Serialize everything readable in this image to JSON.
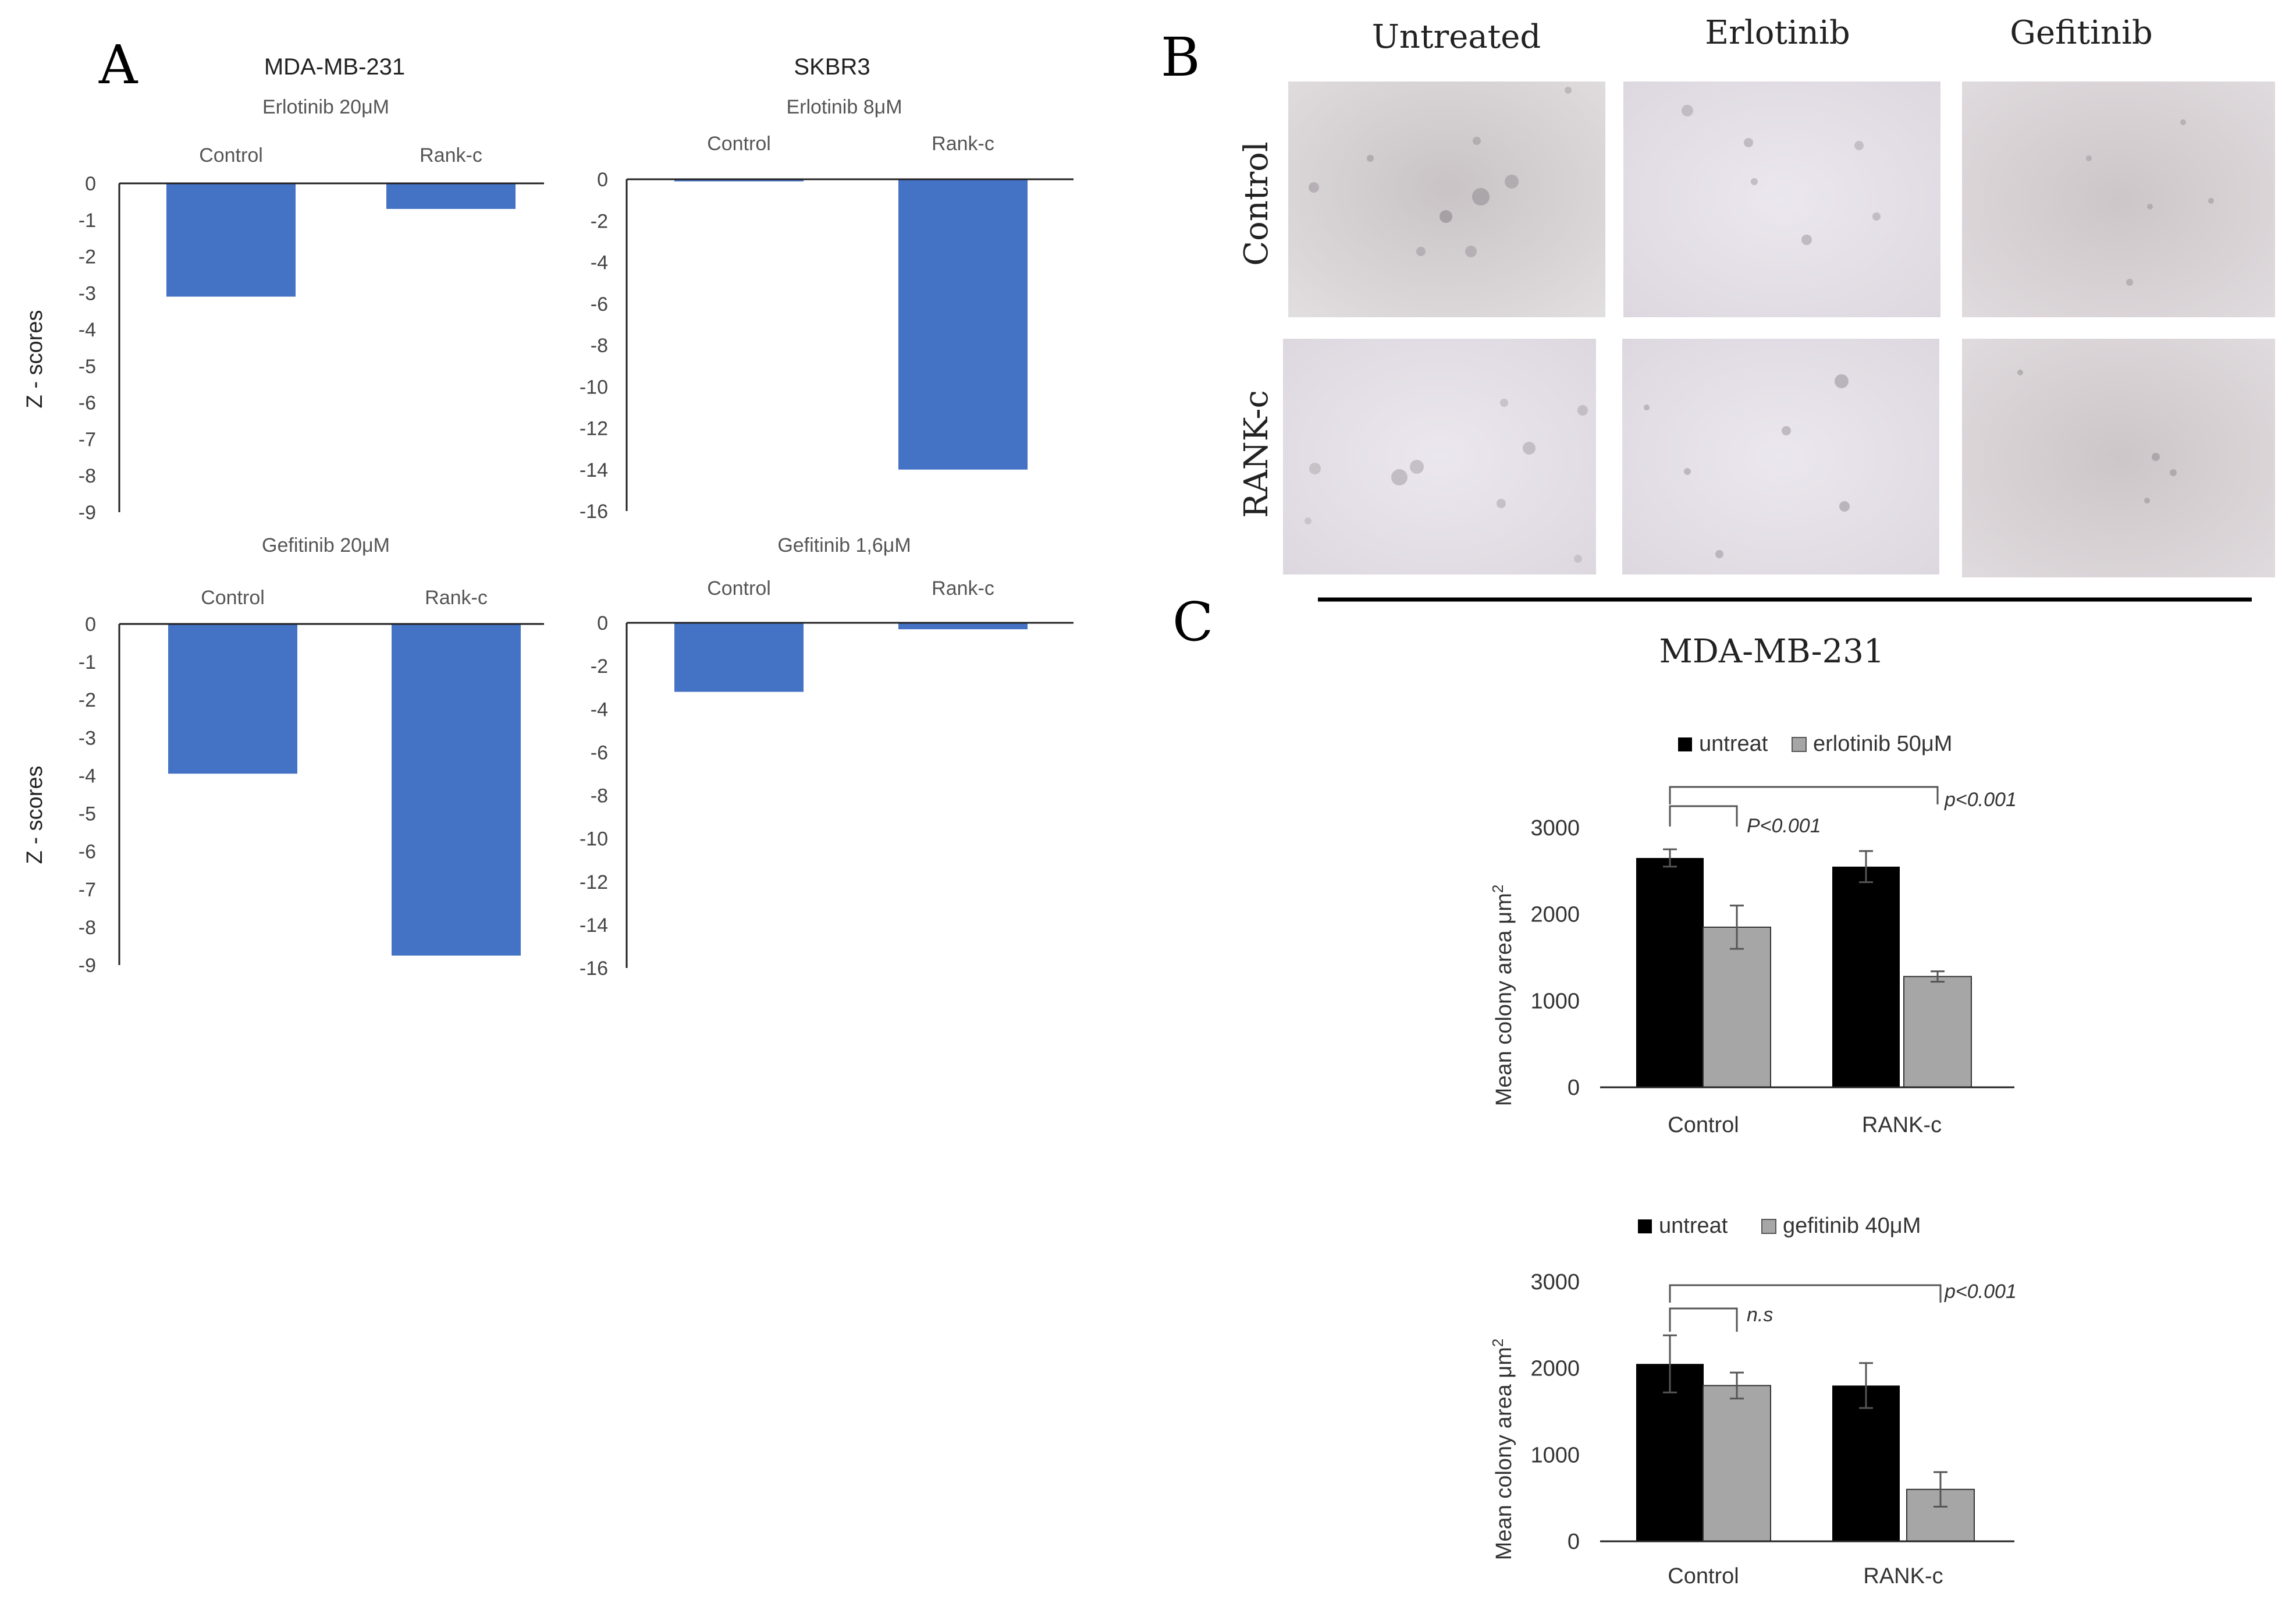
{
  "colors": {
    "bar_blue": "#4472C4",
    "bar_black": "#000000",
    "bar_grey": "#A6A6A6",
    "axis": "#222222"
  },
  "panels": {
    "a": "A",
    "b": "B",
    "c": "C"
  },
  "panel_a": {
    "col1_title": "MDA-MB-231",
    "col2_title": "SKBR3",
    "ylabel": "Z - scores"
  },
  "panel_b": {
    "columns": [
      "Untreated",
      "Erlotinib",
      "Gefitinib"
    ],
    "rows": [
      "Control",
      "RANK-c"
    ]
  },
  "panel_c": {
    "cell_line": "MDA-MB-231",
    "ylabel": "Mean colony area μm",
    "ylabel_sup": "2",
    "erlotinib": {
      "legend": [
        "untreat",
        "erlotinib 50μM"
      ],
      "p_small": "P<0.001",
      "p_large": "p<0.001"
    },
    "gefitinib": {
      "legend": [
        "untreat",
        "gefitinib 40μM"
      ],
      "p_small": "n.s",
      "p_large": "p<0.001"
    }
  },
  "chart_data": [
    {
      "type": "bar",
      "title": "Erlotinib 20μM",
      "group": "MDA-MB-231",
      "categories": [
        "Control",
        "Rank-c"
      ],
      "values": [
        -3.1,
        -0.7
      ],
      "ylim": [
        -9,
        0
      ],
      "yticks": [
        0,
        -1,
        -2,
        -3,
        -4,
        -5,
        -6,
        -7,
        -8,
        -9
      ],
      "ylabel": "Z - scores"
    },
    {
      "type": "bar",
      "title": "Erlotinib 8μM",
      "group": "SKBR3",
      "categories": [
        "Control",
        "Rank-c"
      ],
      "values": [
        -0.1,
        -14
      ],
      "ylim": [
        -16,
        0
      ],
      "yticks": [
        0,
        -2,
        -4,
        -6,
        -8,
        -10,
        -12,
        -14,
        -16
      ],
      "ylabel": ""
    },
    {
      "type": "bar",
      "title": "Gefitinib 20μM",
      "group": "MDA-MB-231",
      "categories": [
        "Control",
        "Rank-c"
      ],
      "values": [
        -3.95,
        -8.75
      ],
      "ylim": [
        -9,
        0
      ],
      "yticks": [
        0,
        -1,
        -2,
        -3,
        -4,
        -5,
        -6,
        -7,
        -8,
        -9
      ],
      "ylabel": "Z - scores"
    },
    {
      "type": "bar",
      "title": "Gefitinib 1,6μM",
      "group": "SKBR3",
      "categories": [
        "Control",
        "Rank-c"
      ],
      "values": [
        -3.2,
        -0.3
      ],
      "ylim": [
        -16,
        0
      ],
      "yticks": [
        0,
        -2,
        -4,
        -6,
        -8,
        -10,
        -12,
        -14,
        -16
      ],
      "ylabel": ""
    },
    {
      "type": "bar",
      "title": "MDA-MB-231",
      "categories": [
        "Control",
        "RANK-c"
      ],
      "series": [
        {
          "name": "untreat",
          "values": [
            2650,
            2550
          ],
          "errors": [
            100,
            180
          ]
        },
        {
          "name": "erlotinib 50μM",
          "values": [
            1850,
            1280
          ],
          "errors": [
            250,
            60
          ]
        }
      ],
      "ylim": [
        0,
        3000
      ],
      "yticks": [
        0,
        1000,
        2000,
        3000
      ],
      "ylabel": "Mean colony area μm²"
    },
    {
      "type": "bar",
      "title": "MDA-MB-231",
      "categories": [
        "Control",
        "RANK-c"
      ],
      "series": [
        {
          "name": "untreat",
          "values": [
            2050,
            1800
          ],
          "errors": [
            330,
            260
          ]
        },
        {
          "name": "gefitinib 40μM",
          "values": [
            1800,
            600
          ],
          "errors": [
            150,
            200
          ]
        }
      ],
      "ylim": [
        0,
        3000
      ],
      "yticks": [
        0,
        1000,
        2000,
        3000
      ],
      "ylabel": "Mean colony area μm²"
    }
  ]
}
